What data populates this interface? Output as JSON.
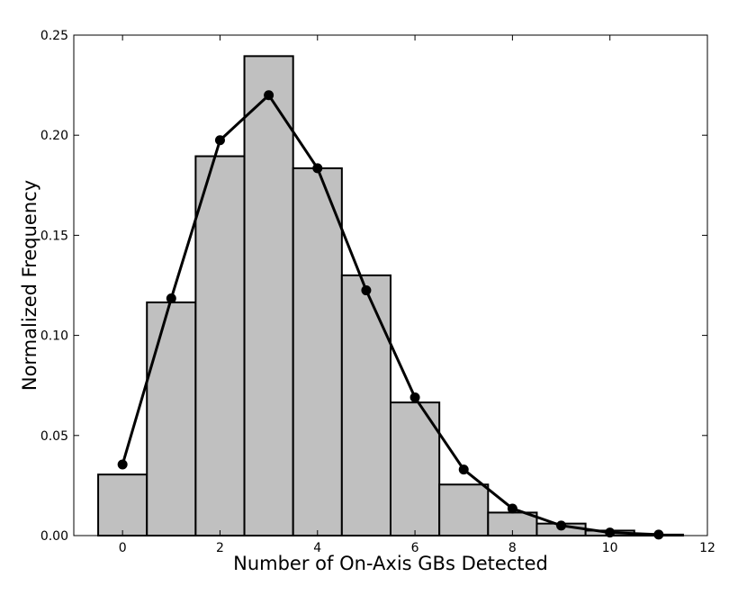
{
  "chart_data": {
    "type": "bar",
    "title": "",
    "xlabel": "Number of On-Axis GBs Detected",
    "ylabel": "Normalized Frequency",
    "xlim": [
      -1,
      12
    ],
    "ylim": [
      0,
      0.25
    ],
    "grid": false,
    "legend": "none",
    "x_ticks": [
      0,
      2,
      4,
      6,
      8,
      10,
      12
    ],
    "x_tick_labels": [
      "0",
      "2",
      "4",
      "6",
      "8",
      "10",
      "12"
    ],
    "y_ticks": [
      0,
      0.05,
      0.1,
      0.15,
      0.2,
      0.25
    ],
    "y_tick_labels": [
      "0.00",
      "0.05",
      "0.10",
      "0.15",
      "0.20",
      "0.25"
    ],
    "bar_color": "#c0c0c0",
    "bar_edge_color": "#000000",
    "line_color": "#000000",
    "histogram": {
      "bin_centers": [
        0,
        1,
        2,
        3,
        4,
        5,
        6,
        7,
        8,
        9,
        10,
        11
      ],
      "bin_width": 1,
      "values": [
        0.0305,
        0.1165,
        0.1895,
        0.2395,
        0.1835,
        0.13,
        0.0665,
        0.0255,
        0.0115,
        0.006,
        0.0025,
        0.0005
      ]
    },
    "line": {
      "x": [
        0,
        1,
        2,
        3,
        4,
        5,
        6,
        7,
        8,
        9,
        10,
        11
      ],
      "y": [
        0.0355,
        0.1185,
        0.1975,
        0.22,
        0.1835,
        0.1225,
        0.069,
        0.033,
        0.0135,
        0.005,
        0.0015,
        0.0005
      ]
    }
  }
}
